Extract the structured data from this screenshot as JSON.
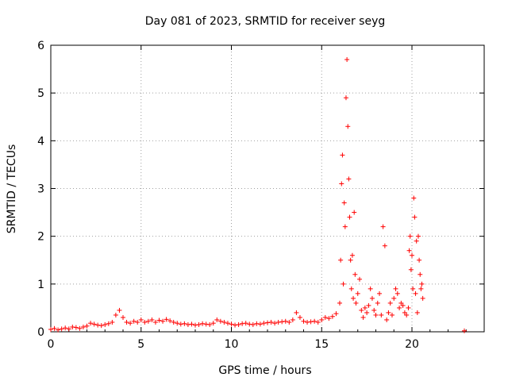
{
  "chart_data": {
    "type": "scatter",
    "title": "Day 081 of 2023, SRMTID for receiver seyg",
    "xlabel": "GPS time / hours",
    "ylabel": "SRMTID / TECUs",
    "xlim": [
      0,
      24
    ],
    "ylim": [
      0,
      6
    ],
    "xticks": [
      0,
      5,
      10,
      15,
      20
    ],
    "yticks": [
      0,
      1,
      2,
      3,
      4,
      5,
      6
    ],
    "x_tick_labels": [
      "0",
      "5",
      "10",
      "15",
      "20"
    ],
    "y_tick_labels": [
      "0",
      "1",
      "2",
      "3",
      "4",
      "5",
      "6"
    ],
    "grid": true,
    "marker": "+",
    "color": "#ff0000",
    "series": [
      {
        "name": "SRMTID",
        "x": [
          0.0,
          0.2,
          0.4,
          0.6,
          0.8,
          1.0,
          1.2,
          1.4,
          1.6,
          1.8,
          2.0,
          2.2,
          2.4,
          2.6,
          2.8,
          3.0,
          3.2,
          3.4,
          3.6,
          3.8,
          4.0,
          4.2,
          4.4,
          4.6,
          4.8,
          5.0,
          5.2,
          5.4,
          5.6,
          5.8,
          6.0,
          6.2,
          6.4,
          6.6,
          6.8,
          7.0,
          7.2,
          7.4,
          7.6,
          7.8,
          8.0,
          8.2,
          8.4,
          8.6,
          8.8,
          9.0,
          9.2,
          9.4,
          9.6,
          9.8,
          10.0,
          10.2,
          10.4,
          10.6,
          10.8,
          11.0,
          11.2,
          11.4,
          11.6,
          11.8,
          12.0,
          12.2,
          12.4,
          12.6,
          12.8,
          13.0,
          13.2,
          13.4,
          13.6,
          13.8,
          14.0,
          14.2,
          14.4,
          14.6,
          14.8,
          15.0,
          15.2,
          15.4,
          15.6,
          15.8,
          16.0,
          16.05,
          16.1,
          16.15,
          16.2,
          16.25,
          16.3,
          16.35,
          16.4,
          16.45,
          16.5,
          16.55,
          16.6,
          16.65,
          16.7,
          16.75,
          16.8,
          16.85,
          16.9,
          17.0,
          17.1,
          17.2,
          17.3,
          17.4,
          17.5,
          17.6,
          17.7,
          17.8,
          17.9,
          18.0,
          18.1,
          18.2,
          18.3,
          18.4,
          18.5,
          18.6,
          18.7,
          18.8,
          18.9,
          19.0,
          19.1,
          19.2,
          19.3,
          19.4,
          19.5,
          19.6,
          19.7,
          19.8,
          19.85,
          19.9,
          19.95,
          20.0,
          20.05,
          20.1,
          20.15,
          20.2,
          20.25,
          20.3,
          20.35,
          20.4,
          20.45,
          20.5,
          20.55,
          20.6,
          22.9
        ],
        "y": [
          0.05,
          0.07,
          0.04,
          0.06,
          0.08,
          0.06,
          0.1,
          0.09,
          0.07,
          0.1,
          0.12,
          0.18,
          0.16,
          0.14,
          0.13,
          0.15,
          0.17,
          0.2,
          0.35,
          0.45,
          0.3,
          0.2,
          0.18,
          0.22,
          0.2,
          0.25,
          0.2,
          0.22,
          0.25,
          0.2,
          0.24,
          0.22,
          0.26,
          0.23,
          0.2,
          0.18,
          0.16,
          0.17,
          0.15,
          0.16,
          0.14,
          0.15,
          0.17,
          0.16,
          0.15,
          0.18,
          0.25,
          0.22,
          0.2,
          0.18,
          0.16,
          0.14,
          0.15,
          0.17,
          0.18,
          0.16,
          0.15,
          0.17,
          0.16,
          0.18,
          0.19,
          0.2,
          0.18,
          0.2,
          0.21,
          0.22,
          0.2,
          0.25,
          0.4,
          0.3,
          0.22,
          0.2,
          0.21,
          0.22,
          0.2,
          0.25,
          0.3,
          0.28,
          0.32,
          0.38,
          0.6,
          1.5,
          3.1,
          3.7,
          1.0,
          2.7,
          2.2,
          4.9,
          5.7,
          4.3,
          3.2,
          2.4,
          1.5,
          0.9,
          1.6,
          0.7,
          2.5,
          1.2,
          0.6,
          0.8,
          1.1,
          0.45,
          0.3,
          0.5,
          0.4,
          0.55,
          0.9,
          0.7,
          0.45,
          0.35,
          0.6,
          0.8,
          0.35,
          2.2,
          1.8,
          0.25,
          0.4,
          0.6,
          0.35,
          0.7,
          0.9,
          0.8,
          0.5,
          0.6,
          0.55,
          0.4,
          0.35,
          0.5,
          1.7,
          2.0,
          1.3,
          1.6,
          0.9,
          2.8,
          2.4,
          0.8,
          1.9,
          0.4,
          2.0,
          1.5,
          1.2,
          0.9,
          1.0,
          0.7,
          0.02
        ]
      }
    ]
  }
}
